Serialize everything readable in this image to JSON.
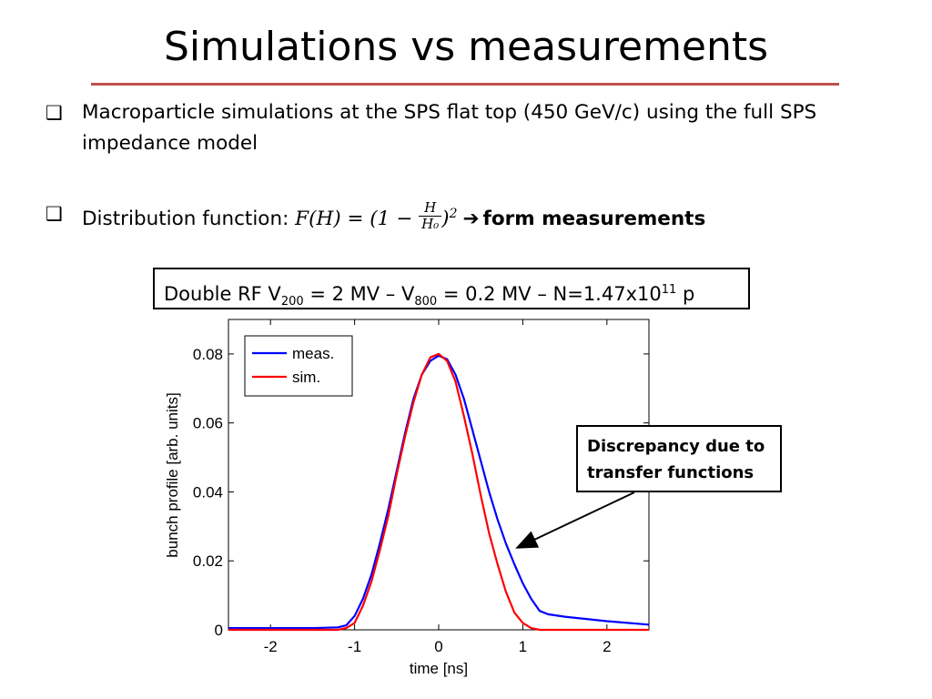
{
  "slide": {
    "title": "Simulations vs measurements",
    "accent_color": "#c0504d",
    "bullet_icon": "checkbox-square-icon",
    "bullet1": {
      "line1": "Macroparticle simulations at the SPS flat top (450 GeV/c) using the full SPS",
      "line2": "impedance model"
    },
    "bullet2": {
      "label": "Distribution function: ",
      "formula_lhs": "F(H) = (1 − ",
      "frac_num": "H",
      "frac_den": "H₀",
      "formula_rhs": ")",
      "exponent": "2",
      "arrow": "➔",
      "emphasis": "form measurements"
    },
    "params_box": {
      "t1": "Double RF V",
      "sub1": "200",
      "t2": " = 2 MV – V",
      "sub2": "800",
      "t3": " = 0.2 MV – N=1.47x10",
      "sup1": "11",
      "t4": " p"
    },
    "callout": {
      "line1": "Discrepancy due to",
      "line2": "transfer functions"
    }
  },
  "chart_data": {
    "type": "line",
    "title": "",
    "xlabel": "time [ns]",
    "ylabel": "bunch profile [arb. units]",
    "xlim": [
      -2.5,
      2.5
    ],
    "ylim": [
      0,
      0.09
    ],
    "xticks": [
      -2,
      -1,
      0,
      1,
      2
    ],
    "xtick_labels": [
      "-2",
      "-1",
      "0",
      "1",
      "2"
    ],
    "yticks": [
      0,
      0.02,
      0.04,
      0.06,
      0.08
    ],
    "ytick_labels": [
      "0",
      "0.02",
      "0.04",
      "0.06",
      "0.08"
    ],
    "grid": false,
    "legend_position": "top-left",
    "series": [
      {
        "name": "meas.",
        "color": "#0000ff",
        "x": [
          -2.5,
          -1.5,
          -1.2,
          -1.1,
          -1.0,
          -0.9,
          -0.8,
          -0.7,
          -0.6,
          -0.5,
          -0.4,
          -0.3,
          -0.2,
          -0.1,
          0.0,
          0.1,
          0.2,
          0.3,
          0.4,
          0.5,
          0.6,
          0.7,
          0.8,
          0.9,
          1.0,
          1.1,
          1.2,
          1.3,
          1.5,
          2.0,
          2.5
        ],
        "y": [
          0.0005,
          0.0005,
          0.0007,
          0.0013,
          0.004,
          0.009,
          0.016,
          0.025,
          0.035,
          0.046,
          0.057,
          0.067,
          0.074,
          0.078,
          0.0795,
          0.0785,
          0.074,
          0.067,
          0.058,
          0.049,
          0.04,
          0.032,
          0.025,
          0.019,
          0.0135,
          0.009,
          0.0055,
          0.0045,
          0.0038,
          0.0025,
          0.0015
        ]
      },
      {
        "name": "sim.",
        "color": "#ff0000",
        "x": [
          -2.5,
          -1.5,
          -1.2,
          -1.1,
          -1.0,
          -0.9,
          -0.8,
          -0.7,
          -0.6,
          -0.5,
          -0.4,
          -0.3,
          -0.2,
          -0.1,
          0.0,
          0.1,
          0.2,
          0.3,
          0.4,
          0.5,
          0.6,
          0.7,
          0.8,
          0.9,
          1.0,
          1.1,
          1.2,
          1.3,
          1.5,
          2.0,
          2.5
        ],
        "y": [
          0.0,
          0.0,
          0.0,
          0.0005,
          0.002,
          0.007,
          0.014,
          0.023,
          0.033,
          0.045,
          0.056,
          0.066,
          0.074,
          0.079,
          0.08,
          0.078,
          0.072,
          0.062,
          0.051,
          0.039,
          0.028,
          0.019,
          0.011,
          0.005,
          0.002,
          0.0005,
          0.0,
          0.0,
          0.0,
          0.0,
          0.0
        ]
      }
    ],
    "annotation": {
      "text_ref": "callout",
      "points_to": {
        "x": 0.95,
        "y": 0.024
      }
    }
  }
}
